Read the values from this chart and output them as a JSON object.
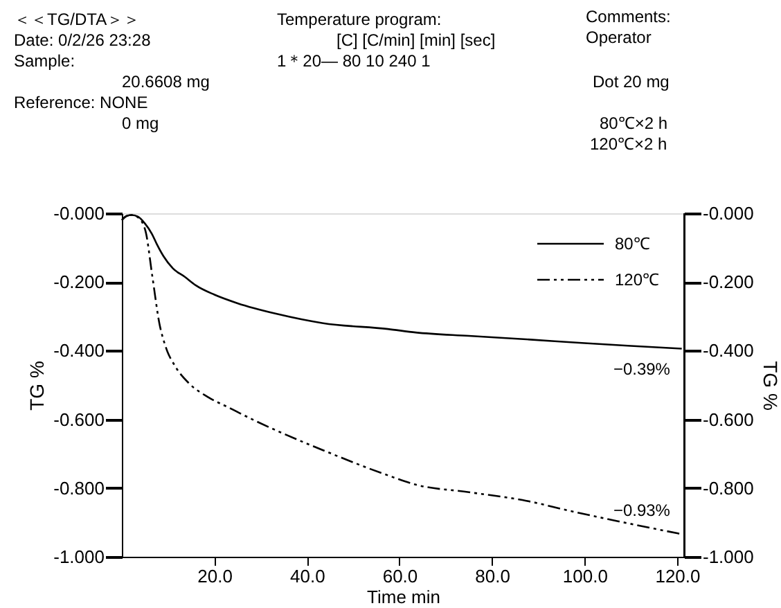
{
  "chart_data": {
    "type": "line",
    "xlabel": "Time min",
    "ylabel": "TG %",
    "y2label": "TG %",
    "xlim": [
      0,
      121.5
    ],
    "xticks": [
      {
        "value": 20,
        "label": "20.0"
      },
      {
        "value": 40,
        "label": "40.0"
      },
      {
        "value": 60,
        "label": "60.0"
      },
      {
        "value": 80,
        "label": "80.0"
      },
      {
        "value": 100,
        "label": "100.0"
      },
      {
        "value": 120,
        "label": "120.0"
      }
    ],
    "ylim": [
      -1.0,
      0.0
    ],
    "yticks": [
      {
        "value": 0,
        "label": "-0.000"
      },
      {
        "value": -0.2,
        "label": "-0.200"
      },
      {
        "value": -0.4,
        "label": "-0.400"
      },
      {
        "value": -0.6,
        "label": "-0.600"
      },
      {
        "value": -0.8,
        "label": "-0.800"
      },
      {
        "value": -1.0,
        "label": "-1.000"
      }
    ],
    "y2lim": [
      -1.0,
      0.0
    ],
    "y2ticks": [
      {
        "value": 0,
        "label": "-0.000"
      },
      {
        "value": -0.2,
        "label": "-0.200"
      },
      {
        "value": -0.4,
        "label": "-0.400"
      },
      {
        "value": -0.6,
        "label": "-0.600"
      },
      {
        "value": -0.8,
        "label": "-0.800"
      },
      {
        "value": -1.0,
        "label": "-1.000"
      }
    ],
    "grid": false,
    "legend": "top right",
    "marker": "none",
    "series": [
      {
        "name": "80℃",
        "color": "#000000",
        "line_style": "solid",
        "x": [
          0,
          1,
          2.1,
          3.5,
          5,
          6.5,
          7.6,
          9,
          11,
          13.6,
          16,
          20,
          25,
          33.5,
          43.5,
          57.5,
          63.5,
          75,
          87.4,
          100,
          110,
          121
        ],
        "values": [
          -0.02,
          -0.008,
          -0.005,
          -0.01,
          -0.03,
          -0.06,
          -0.091,
          -0.125,
          -0.16,
          -0.185,
          -0.21,
          -0.237,
          -0.262,
          -0.293,
          -0.32,
          -0.337,
          -0.347,
          -0.357,
          -0.367,
          -0.378,
          -0.386,
          -0.394
        ]
      },
      {
        "name": "120℃",
        "color": "#000000",
        "line_style": "dashed",
        "x": [
          0,
          1,
          2.1,
          3.5,
          5.1,
          6.6,
          8.1,
          9.5,
          11.6,
          14.5,
          18.6,
          23,
          28.5,
          35,
          43.5,
          57.5,
          63.5,
          75,
          87.4,
          97,
          107.4,
          115,
          121.3
        ],
        "values": [
          -0.02,
          -0.008,
          -0.005,
          -0.012,
          -0.051,
          -0.185,
          -0.32,
          -0.39,
          -0.447,
          -0.495,
          -0.535,
          -0.565,
          -0.602,
          -0.642,
          -0.69,
          -0.763,
          -0.79,
          -0.812,
          -0.837,
          -0.867,
          -0.897,
          -0.918,
          -0.935
        ]
      }
    ],
    "annotations": [
      "＜＜TG/DTA＞＞",
      "Date: 0/2/26  23:28",
      "Sample:",
      "20.6608 mg",
      "Reference: NONE",
      "0 mg",
      "Temperature program:",
      "[C] [C/min] [min] [sec]",
      "1＊20—  80     10     240     1",
      "Comments:",
      "Operator",
      "Dot 20 mg",
      "80℃×2 h",
      "120℃×2 h",
      {
        "text": "−0.39%",
        "x": 120,
        "y": -0.39
      },
      {
        "text": "−0.93%",
        "x": 120,
        "y": -0.93
      }
    ]
  }
}
